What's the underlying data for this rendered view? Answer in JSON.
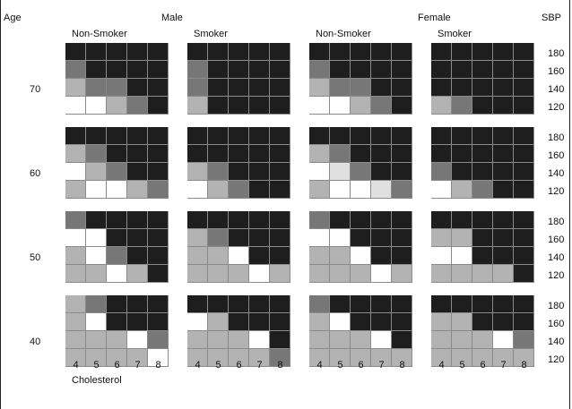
{
  "header": {
    "age": "Age",
    "male": "Male",
    "female": "Female",
    "sbp": "SBP",
    "nonsmoker_male": "Non-Smoker",
    "smoker_male": "Smoker",
    "nonsmoker_female": "Non-Smoker",
    "smoker_female": "Smoker"
  },
  "ages": [
    "70",
    "60",
    "50",
    "40"
  ],
  "sbp_values": [
    "180",
    "160",
    "140",
    "120"
  ],
  "cholesterol_values": [
    "4",
    "5",
    "6",
    "7",
    "8"
  ],
  "cholesterol_label": "Cholesterol",
  "colors": {
    "0": "#ffffff",
    "1": "#e0e0e0",
    "2": "#b3b3b3",
    "3": "#777777",
    "4": "#1e1e1e"
  },
  "grids": [
    [
      [
        "44444",
        "34444",
        "23344",
        "00234"
      ],
      [
        "44444",
        "34444",
        "34444",
        "24444"
      ],
      [
        "44444",
        "34444",
        "23344",
        "00234"
      ],
      [
        "44444",
        "44444",
        "44444",
        "23444"
      ]
    ],
    [
      [
        "44444",
        "23444",
        "02344",
        "20023"
      ],
      [
        "44444",
        "44444",
        "23444",
        "02344"
      ],
      [
        "44444",
        "23444",
        "01344",
        "20013"
      ],
      [
        "44444",
        "44444",
        "34444",
        "02344"
      ]
    ],
    [
      [
        "34444",
        "00444",
        "20344",
        "22024"
      ],
      [
        "44444",
        "23444",
        "22044",
        "22202"
      ],
      [
        "34444",
        "00444",
        "22044",
        "22202"
      ],
      [
        "44444",
        "22444",
        "00444",
        "22224"
      ]
    ],
    [
      [
        "23444",
        "20444",
        "22203",
        "22220"
      ],
      [
        "44444",
        "02444",
        "22204",
        "22223"
      ],
      [
        "34444",
        "20444",
        "22204",
        "22222"
      ],
      [
        "44444",
        "22444",
        "22203",
        "22222"
      ]
    ]
  ]
}
